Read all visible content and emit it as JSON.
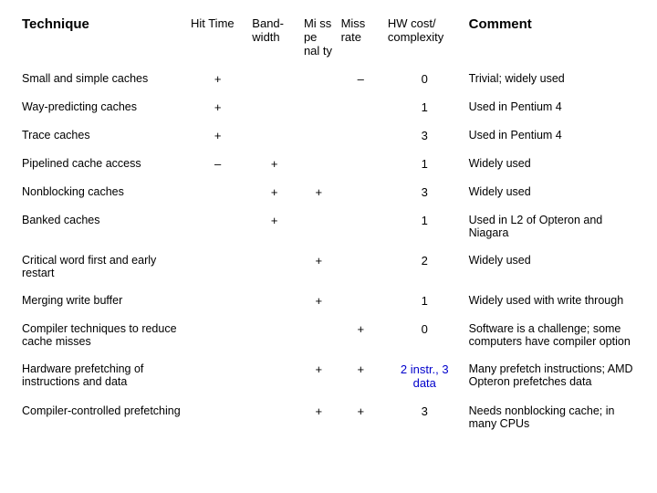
{
  "headers": {
    "technique": "Technique",
    "hit_time": "Hit Time",
    "bandwidth": "Band-width",
    "miss_penalty": "Mi ss pe nal ty",
    "miss_rate": "Miss rate",
    "hw_cost": "HW cost/ complexity",
    "comment": "Comment"
  },
  "rows": [
    {
      "tech": "Small and simple caches",
      "hit": "+",
      "bw": "",
      "mp": "",
      "mr": "–",
      "hw": "0",
      "comment": "Trivial; widely used"
    },
    {
      "tech": "Way-predicting caches",
      "hit": "+",
      "bw": "",
      "mp": "",
      "mr": "",
      "hw": "1",
      "comment": "Used in Pentium 4"
    },
    {
      "tech": "Trace caches",
      "hit": "+",
      "bw": "",
      "mp": "",
      "mr": "",
      "hw": "3",
      "comment": "Used in Pentium 4"
    },
    {
      "tech": "Pipelined cache access",
      "hit": "–",
      "bw": "+",
      "mp": "",
      "mr": "",
      "hw": "1",
      "comment": "Widely used"
    },
    {
      "tech": "Nonblocking caches",
      "hit": "",
      "bw": "+",
      "mp": "+",
      "mr": "",
      "hw": "3",
      "comment": "Widely used"
    },
    {
      "tech": "Banked caches",
      "hit": "",
      "bw": "+",
      "mp": "",
      "mr": "",
      "hw": "1",
      "comment": "Used in L2 of Opteron and Niagara"
    },
    {
      "tech": "Critical word first and early restart",
      "hit": "",
      "bw": "",
      "mp": "+",
      "mr": "",
      "hw": "2",
      "comment": "Widely used"
    },
    {
      "tech": "Merging write buffer",
      "hit": "",
      "bw": "",
      "mp": "+",
      "mr": "",
      "hw": "1",
      "comment": "Widely used with write through"
    },
    {
      "tech": "Compiler techniques to reduce cache misses",
      "hit": "",
      "bw": "",
      "mp": "",
      "mr": "+",
      "hw": "0",
      "comment": "Software is a challenge; some computers have compiler option"
    },
    {
      "tech": "Hardware prefetching of instructions and data",
      "hit": "",
      "bw": "",
      "mp": "+",
      "mr": "+",
      "hw": "2 instr., 3 data",
      "comment": "Many prefetch instructions; AMD Opteron prefetches data",
      "hw_blue": true
    },
    {
      "tech": "Compiler-controlled prefetching",
      "hit": "",
      "bw": "",
      "mp": "+",
      "mr": "+",
      "hw": "3",
      "comment": "Needs nonblocking cache; in many CPUs"
    }
  ]
}
